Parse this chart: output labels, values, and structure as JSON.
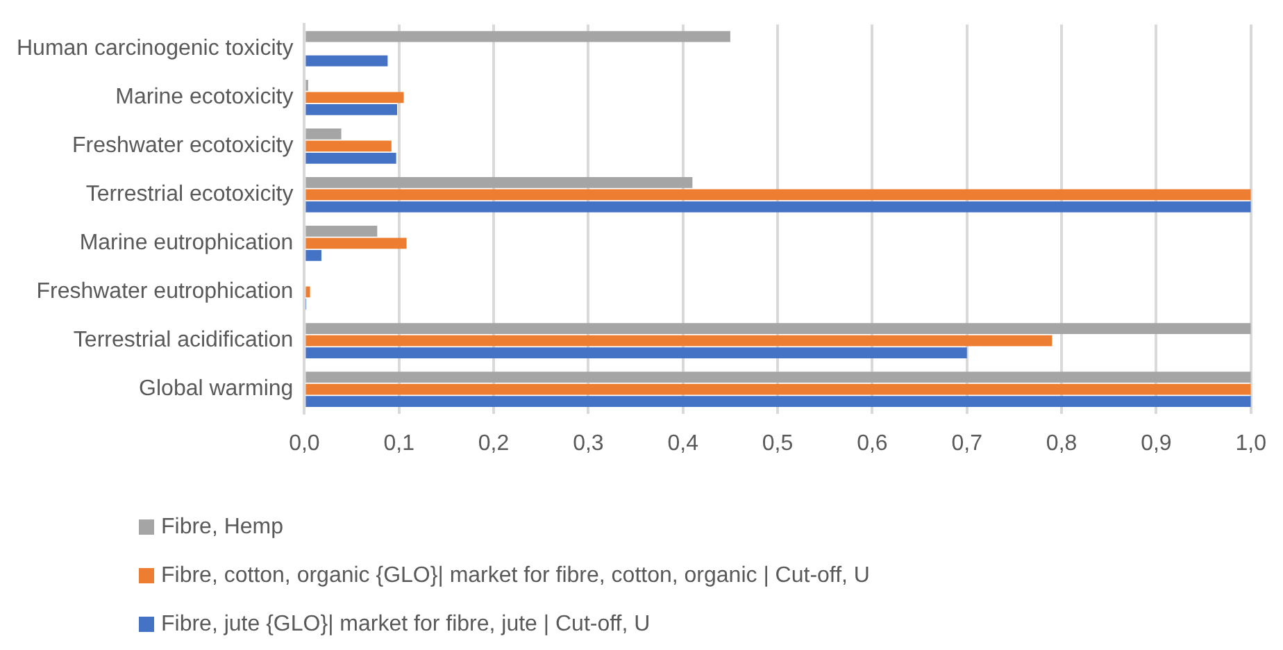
{
  "chart_data": {
    "type": "bar",
    "orientation": "horizontal",
    "categories": [
      "Human carcinogenic toxicity",
      "Marine ecotoxicity",
      "Freshwater ecotoxicity",
      "Terrestrial ecotoxicity",
      "Marine eutrophication",
      "Freshwater eutrophication",
      "Terrestrial acidification",
      "Global warming"
    ],
    "series": [
      {
        "name": "Fibre, Hemp",
        "color": "#a5a5a5",
        "values": [
          0.45,
          0.004,
          0.039,
          0.41,
          0.077,
          0,
          1.0,
          1.0
        ]
      },
      {
        "name": "Fibre, cotton, organic {GLO}| market for fibre, cotton, organic | Cut-off, U",
        "color": "#ed7d31",
        "values": [
          0,
          0.105,
          0.092,
          1.0,
          0.108,
          0.006,
          0.79,
          1.0
        ]
      },
      {
        "name": "Fibre, jute {GLO}| market for fibre, jute | Cut-off, U",
        "color": "#4472c4",
        "values": [
          0.088,
          0.098,
          0.097,
          1.0,
          0.018,
          0.002,
          0.7,
          1.0
        ]
      }
    ],
    "xlim": [
      0,
      1
    ],
    "xticks": [
      {
        "value": 0,
        "label": "0,0"
      },
      {
        "value": 0.1,
        "label": "0,1"
      },
      {
        "value": 0.2,
        "label": "0,2"
      },
      {
        "value": 0.3,
        "label": "0,3"
      },
      {
        "value": 0.4,
        "label": "0,4"
      },
      {
        "value": 0.5,
        "label": "0,5"
      },
      {
        "value": 0.6,
        "label": "0,6"
      },
      {
        "value": 0.7,
        "label": "0,7"
      },
      {
        "value": 0.8,
        "label": "0,8"
      },
      {
        "value": 0.9,
        "label": "0,9"
      },
      {
        "value": 1,
        "label": "1,0"
      }
    ],
    "grid": "x",
    "legend": "bottom left"
  }
}
